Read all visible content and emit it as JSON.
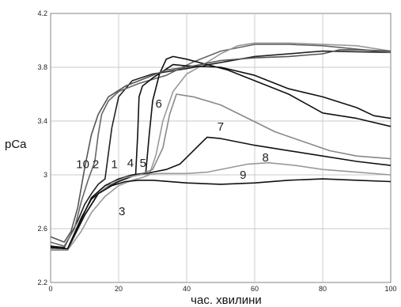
{
  "chart_data": {
    "type": "line",
    "xlabel": "час. хвилини",
    "ylabel": "pCa",
    "xlim": [
      0,
      100
    ],
    "ylim": [
      2.2,
      4.2
    ],
    "x_ticks": [
      0,
      20,
      40,
      60,
      80,
      100
    ],
    "y_ticks": [
      2.2,
      2.6,
      3,
      3.4,
      3.8,
      4.2
    ],
    "y_tick_labels": [
      "2.2",
      "2.6",
      "3",
      "3.4",
      "3.8",
      "4.2"
    ],
    "grid": true,
    "series": [
      {
        "name": "1",
        "color": "#222222",
        "points": [
          [
            0,
            2.47
          ],
          [
            4,
            2.46
          ],
          [
            8,
            2.66
          ],
          [
            10,
            2.78
          ],
          [
            12,
            2.86
          ],
          [
            14,
            2.93
          ],
          [
            16,
            2.97
          ],
          [
            18,
            3.35
          ],
          [
            20,
            3.58
          ],
          [
            24,
            3.7
          ],
          [
            30,
            3.75
          ],
          [
            40,
            3.79
          ],
          [
            60,
            3.88
          ],
          [
            80,
            3.92
          ],
          [
            100,
            3.91
          ]
        ]
      },
      {
        "name": "2",
        "color": "#666666",
        "points": [
          [
            0,
            2.5
          ],
          [
            4,
            2.47
          ],
          [
            7,
            2.6
          ],
          [
            9,
            2.8
          ],
          [
            11,
            2.96
          ],
          [
            13,
            3.1
          ],
          [
            14,
            3.3
          ],
          [
            15,
            3.45
          ],
          [
            17,
            3.55
          ],
          [
            20,
            3.62
          ],
          [
            26,
            3.68
          ],
          [
            34,
            3.74
          ],
          [
            42,
            3.84
          ],
          [
            50,
            3.92
          ],
          [
            60,
            3.97
          ],
          [
            70,
            3.97
          ],
          [
            80,
            3.96
          ],
          [
            100,
            3.91
          ]
        ]
      },
      {
        "name": "3",
        "color": "#999999",
        "points": [
          [
            0,
            2.44
          ],
          [
            5,
            2.44
          ],
          [
            9,
            2.58
          ],
          [
            12,
            2.72
          ],
          [
            16,
            2.84
          ],
          [
            20,
            2.92
          ],
          [
            24,
            2.96
          ],
          [
            27,
            2.98
          ],
          [
            29,
            3.0
          ],
          [
            31,
            3.15
          ],
          [
            33,
            3.4
          ],
          [
            36,
            3.62
          ],
          [
            40,
            3.75
          ],
          [
            45,
            3.82
          ],
          [
            50,
            3.9
          ],
          [
            55,
            3.96
          ],
          [
            60,
            3.98
          ],
          [
            70,
            3.98
          ],
          [
            80,
            3.97
          ],
          [
            90,
            3.96
          ],
          [
            100,
            3.92
          ]
        ]
      },
      {
        "name": "4",
        "color": "#111111",
        "points": [
          [
            0,
            2.46
          ],
          [
            5,
            2.45
          ],
          [
            9,
            2.68
          ],
          [
            12,
            2.82
          ],
          [
            16,
            2.9
          ],
          [
            20,
            2.95
          ],
          [
            24,
            2.99
          ],
          [
            25,
            3.0
          ],
          [
            25.6,
            3.3
          ],
          [
            26,
            3.58
          ],
          [
            27,
            3.66
          ],
          [
            30,
            3.72
          ],
          [
            36,
            3.82
          ],
          [
            40,
            3.81
          ],
          [
            50,
            3.8
          ],
          [
            60,
            3.74
          ],
          [
            70,
            3.64
          ],
          [
            80,
            3.58
          ],
          [
            90,
            3.5
          ],
          [
            95,
            3.44
          ],
          [
            100,
            3.42
          ]
        ]
      },
      {
        "name": "5",
        "color": "#111111",
        "points": [
          [
            0,
            2.46
          ],
          [
            5,
            2.45
          ],
          [
            9,
            2.67
          ],
          [
            12,
            2.83
          ],
          [
            16,
            2.92
          ],
          [
            20,
            2.97
          ],
          [
            24,
            3.0
          ],
          [
            27,
            3.01
          ],
          [
            28,
            3.02
          ],
          [
            29,
            3.3
          ],
          [
            30,
            3.55
          ],
          [
            32,
            3.75
          ],
          [
            34,
            3.86
          ],
          [
            36,
            3.88
          ],
          [
            40,
            3.86
          ],
          [
            46,
            3.82
          ],
          [
            52,
            3.78
          ],
          [
            60,
            3.7
          ],
          [
            70,
            3.6
          ],
          [
            80,
            3.46
          ],
          [
            90,
            3.42
          ],
          [
            100,
            3.36
          ]
        ]
      },
      {
        "name": "6",
        "color": "#888888",
        "points": [
          [
            0,
            2.45
          ],
          [
            5,
            2.44
          ],
          [
            10,
            2.7
          ],
          [
            14,
            2.86
          ],
          [
            18,
            2.94
          ],
          [
            22,
            2.98
          ],
          [
            26,
            3.0
          ],
          [
            30,
            3.04
          ],
          [
            33,
            3.2
          ],
          [
            35,
            3.45
          ],
          [
            37,
            3.6
          ],
          [
            42,
            3.58
          ],
          [
            50,
            3.52
          ],
          [
            58,
            3.42
          ],
          [
            66,
            3.32
          ],
          [
            74,
            3.25
          ],
          [
            82,
            3.18
          ],
          [
            90,
            3.14
          ],
          [
            100,
            3.12
          ]
        ]
      },
      {
        "name": "7",
        "color": "#111111",
        "points": [
          [
            0,
            2.47
          ],
          [
            5,
            2.45
          ],
          [
            10,
            2.7
          ],
          [
            14,
            2.86
          ],
          [
            18,
            2.94
          ],
          [
            22,
            2.98
          ],
          [
            26,
            3.0
          ],
          [
            30,
            3.02
          ],
          [
            34,
            3.04
          ],
          [
            38,
            3.08
          ],
          [
            42,
            3.18
          ],
          [
            46,
            3.28
          ],
          [
            50,
            3.27
          ],
          [
            60,
            3.22
          ],
          [
            70,
            3.18
          ],
          [
            80,
            3.14
          ],
          [
            90,
            3.1
          ],
          [
            100,
            3.07
          ]
        ]
      },
      {
        "name": "8",
        "color": "#999999",
        "points": [
          [
            0,
            2.45
          ],
          [
            5,
            2.44
          ],
          [
            10,
            2.7
          ],
          [
            14,
            2.86
          ],
          [
            18,
            2.94
          ],
          [
            22,
            2.98
          ],
          [
            26,
            3.0
          ],
          [
            32,
            3.01
          ],
          [
            40,
            3.01
          ],
          [
            46,
            3.02
          ],
          [
            52,
            3.05
          ],
          [
            58,
            3.08
          ],
          [
            64,
            3.09
          ],
          [
            72,
            3.07
          ],
          [
            80,
            3.04
          ],
          [
            90,
            3.02
          ],
          [
            100,
            3.0
          ]
        ]
      },
      {
        "name": "9",
        "color": "#111111",
        "points": [
          [
            0,
            2.46
          ],
          [
            5,
            2.45
          ],
          [
            10,
            2.7
          ],
          [
            14,
            2.86
          ],
          [
            18,
            2.92
          ],
          [
            22,
            2.95
          ],
          [
            26,
            2.96
          ],
          [
            30,
            2.96
          ],
          [
            40,
            2.94
          ],
          [
            50,
            2.93
          ],
          [
            60,
            2.94
          ],
          [
            70,
            2.96
          ],
          [
            80,
            2.97
          ],
          [
            90,
            2.96
          ],
          [
            100,
            2.95
          ]
        ]
      },
      {
        "name": "10",
        "color": "#555555",
        "points": [
          [
            0,
            2.54
          ],
          [
            4,
            2.5
          ],
          [
            6,
            2.58
          ],
          [
            8,
            2.76
          ],
          [
            10,
            3.05
          ],
          [
            12,
            3.3
          ],
          [
            14,
            3.45
          ],
          [
            17,
            3.58
          ],
          [
            22,
            3.66
          ],
          [
            28,
            3.72
          ],
          [
            34,
            3.78
          ],
          [
            40,
            3.8
          ],
          [
            44,
            3.82
          ],
          [
            50,
            3.85
          ],
          [
            60,
            3.87
          ],
          [
            70,
            3.88
          ],
          [
            80,
            3.9
          ],
          [
            85,
            3.93
          ],
          [
            90,
            3.93
          ],
          [
            100,
            3.92
          ]
        ]
      }
    ],
    "curve_labels": [
      {
        "text": "10",
        "x": 7.5,
        "y": 3.05,
        "color": "#222222"
      },
      {
        "text": "2",
        "x": 12.3,
        "y": 3.05,
        "color": "#222222"
      },
      {
        "text": "1",
        "x": 17.8,
        "y": 3.05,
        "color": "#222222"
      },
      {
        "text": "4",
        "x": 22.5,
        "y": 3.06,
        "color": "#222222"
      },
      {
        "text": "5",
        "x": 26.2,
        "y": 3.06,
        "color": "#222222"
      },
      {
        "text": "6",
        "x": 30.8,
        "y": 3.5,
        "color": "#222222"
      },
      {
        "text": "7",
        "x": 49.0,
        "y": 3.33,
        "color": "#222222"
      },
      {
        "text": "8",
        "x": 62.2,
        "y": 3.1,
        "color": "#222222"
      },
      {
        "text": "9",
        "x": 55.6,
        "y": 2.97,
        "color": "#222222"
      },
      {
        "text": "3",
        "x": 20.0,
        "y": 2.7,
        "color": "#222222"
      }
    ]
  }
}
